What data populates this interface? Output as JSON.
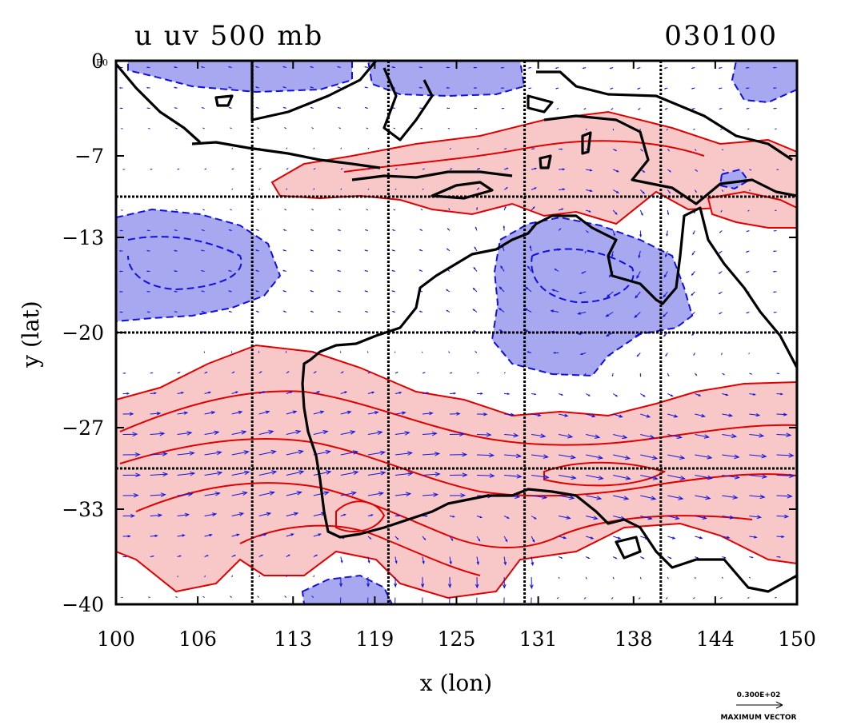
{
  "title_left": "u uv 500 mb",
  "title_right": "030100",
  "x_axis": {
    "label": "x (lon)",
    "ticks": [
      {
        "value": 100,
        "label": "100"
      },
      {
        "value": 106,
        "label": "106"
      },
      {
        "value": 113,
        "label": "113"
      },
      {
        "value": 119,
        "label": "119"
      },
      {
        "value": 125,
        "label": "125"
      },
      {
        "value": 131,
        "label": "131"
      },
      {
        "value": 138,
        "label": "138"
      },
      {
        "value": 144,
        "label": "144"
      },
      {
        "value": 150,
        "label": "150"
      }
    ]
  },
  "y_axis": {
    "label": "y (lat)",
    "ticks": [
      {
        "value": 0,
        "label": "0"
      },
      {
        "value": -7,
        "label": "−7"
      },
      {
        "value": -13,
        "label": "−13"
      },
      {
        "value": -20,
        "label": "−20"
      },
      {
        "value": -27,
        "label": "−27"
      },
      {
        "value": -33,
        "label": "−33"
      },
      {
        "value": -40,
        "label": "−40"
      }
    ]
  },
  "corner_label": "E0",
  "ref_vector": {
    "value": "0.300E+02",
    "caption": "MAXIMUM VECTOR"
  },
  "colors": {
    "positive_fill": "#f8c8c8",
    "positive_line": "#e00000",
    "negative_fill": "#a8a8f0",
    "negative_line": "#1010e0",
    "vector": "#1515e0",
    "coast": "#000000"
  },
  "grid_lines": {
    "lon": [
      110,
      120,
      130,
      140
    ],
    "lat": [
      -10,
      -20,
      -30
    ]
  }
}
